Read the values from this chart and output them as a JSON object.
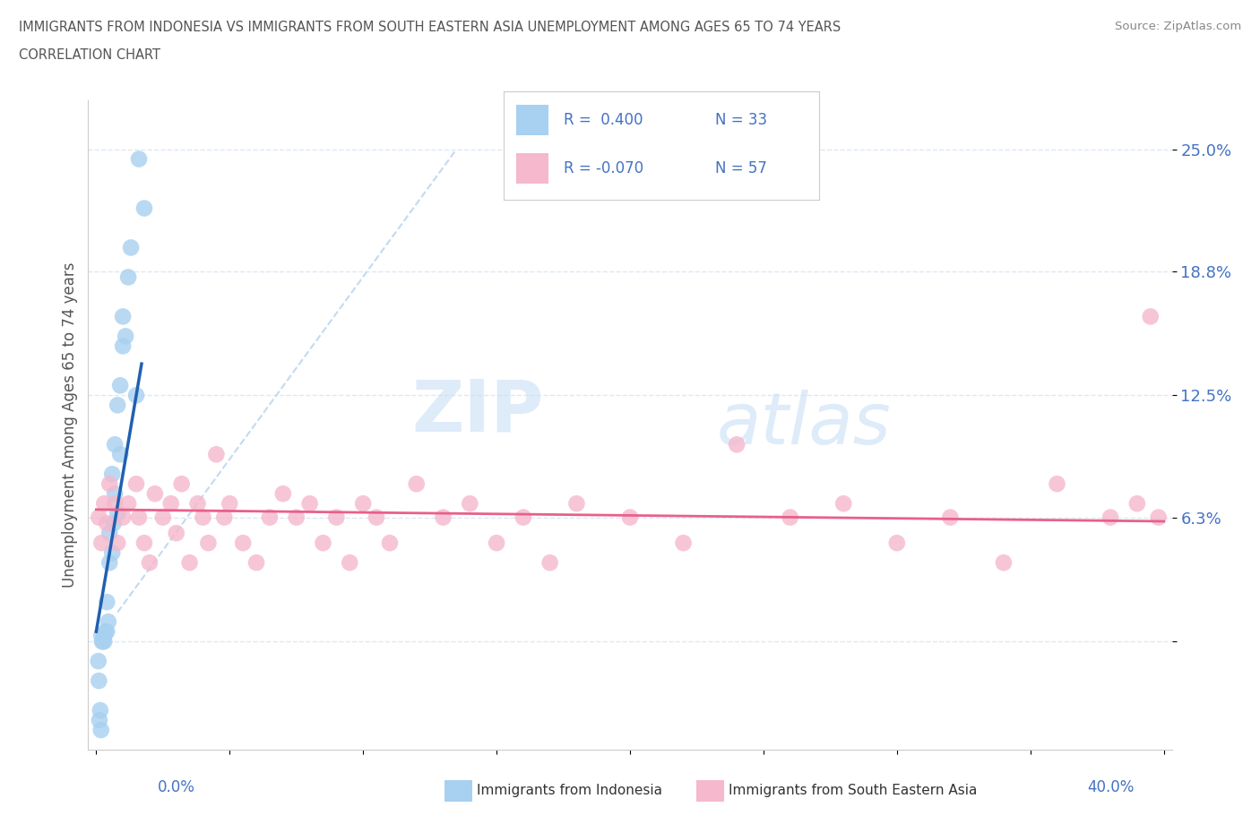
{
  "title_line1": "IMMIGRANTS FROM INDONESIA VS IMMIGRANTS FROM SOUTH EASTERN ASIA UNEMPLOYMENT AMONG AGES 65 TO 74 YEARS",
  "title_line2": "CORRELATION CHART",
  "source": "Source: ZipAtlas.com",
  "ylabel": "Unemployment Among Ages 65 to 74 years",
  "xlim": [
    -0.003,
    0.403
  ],
  "ylim": [
    -0.055,
    0.275
  ],
  "ytick_positions": [
    0.0,
    0.063,
    0.125,
    0.188,
    0.25
  ],
  "ytick_labels": [
    "",
    "6.3%",
    "12.5%",
    "18.8%",
    "25.0%"
  ],
  "color_indonesia": "#a8d0f0",
  "color_sea": "#f5b8cc",
  "color_indonesia_line": "#2060b0",
  "color_sea_line": "#e8608a",
  "color_diag_line": "#b8d4f0",
  "watermark_zip": "ZIP",
  "watermark_atlas": "atlas",
  "background_color": "#ffffff",
  "grid_color": "#dde8f5",
  "legend_r1": "R =  0.400",
  "legend_n1": "N = 33",
  "legend_r2": "R = -0.070",
  "legend_n2": "N = 57",
  "indo_x": [
    0.0008,
    0.001,
    0.0012,
    0.0015,
    0.0018,
    0.002,
    0.0022,
    0.0025,
    0.003,
    0.003,
    0.0035,
    0.004,
    0.004,
    0.0045,
    0.005,
    0.005,
    0.006,
    0.006,
    0.0065,
    0.007,
    0.007,
    0.008,
    0.008,
    0.009,
    0.009,
    0.01,
    0.01,
    0.011,
    0.012,
    0.013,
    0.015,
    0.016,
    0.018
  ],
  "indo_y": [
    -0.01,
    -0.02,
    -0.04,
    -0.035,
    -0.045,
    0.003,
    0.0,
    0.0,
    0.0,
    0.003,
    0.005,
    0.005,
    0.02,
    0.01,
    0.04,
    0.055,
    0.045,
    0.085,
    0.06,
    0.075,
    0.1,
    0.065,
    0.12,
    0.095,
    0.13,
    0.15,
    0.165,
    0.155,
    0.185,
    0.2,
    0.125,
    0.245,
    0.22
  ],
  "sea_x": [
    0.001,
    0.002,
    0.003,
    0.004,
    0.005,
    0.007,
    0.008,
    0.01,
    0.012,
    0.015,
    0.016,
    0.018,
    0.02,
    0.022,
    0.025,
    0.028,
    0.03,
    0.032,
    0.035,
    0.038,
    0.04,
    0.042,
    0.045,
    0.048,
    0.05,
    0.055,
    0.06,
    0.065,
    0.07,
    0.075,
    0.08,
    0.085,
    0.09,
    0.095,
    0.1,
    0.105,
    0.11,
    0.12,
    0.13,
    0.14,
    0.15,
    0.16,
    0.17,
    0.18,
    0.2,
    0.22,
    0.24,
    0.26,
    0.28,
    0.3,
    0.32,
    0.34,
    0.36,
    0.38,
    0.39,
    0.395,
    0.398
  ],
  "sea_y": [
    0.063,
    0.05,
    0.07,
    0.06,
    0.08,
    0.07,
    0.05,
    0.063,
    0.07,
    0.08,
    0.063,
    0.05,
    0.04,
    0.075,
    0.063,
    0.07,
    0.055,
    0.08,
    0.04,
    0.07,
    0.063,
    0.05,
    0.095,
    0.063,
    0.07,
    0.05,
    0.04,
    0.063,
    0.075,
    0.063,
    0.07,
    0.05,
    0.063,
    0.04,
    0.07,
    0.063,
    0.05,
    0.08,
    0.063,
    0.07,
    0.05,
    0.063,
    0.04,
    0.07,
    0.063,
    0.05,
    0.1,
    0.063,
    0.07,
    0.05,
    0.063,
    0.04,
    0.08,
    0.063,
    0.07,
    0.165,
    0.063
  ]
}
